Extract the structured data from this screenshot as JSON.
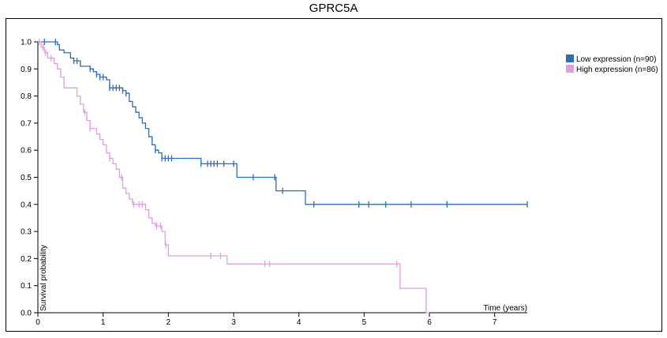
{
  "title": "GPRC5A",
  "chart_data": {
    "type": "line",
    "title": "GPRC5A",
    "xlabel": "Time (years)",
    "ylabel": "Survival probability",
    "xlim": [
      0,
      7.5
    ],
    "ylim": [
      0,
      1.0
    ],
    "x_ticks": [
      0,
      1,
      2,
      3,
      4,
      5,
      6,
      7
    ],
    "y_ticks": [
      0.0,
      0.1,
      0.2,
      0.3,
      0.4,
      0.5,
      0.6,
      0.7,
      0.8,
      0.9,
      1.0
    ],
    "legend_position": "top-right",
    "series": [
      {
        "name": "Low expression (n=90)",
        "color": "#2e6db4",
        "steps": [
          [
            0,
            1.0
          ],
          [
            0.3,
            0.99
          ],
          [
            0.33,
            0.97
          ],
          [
            0.4,
            0.96
          ],
          [
            0.5,
            0.94
          ],
          [
            0.55,
            0.93
          ],
          [
            0.65,
            0.91
          ],
          [
            0.8,
            0.9
          ],
          [
            0.85,
            0.89
          ],
          [
            0.9,
            0.88
          ],
          [
            0.95,
            0.87
          ],
          [
            1.05,
            0.86
          ],
          [
            1.1,
            0.83
          ],
          [
            1.3,
            0.82
          ],
          [
            1.35,
            0.81
          ],
          [
            1.4,
            0.78
          ],
          [
            1.45,
            0.76
          ],
          [
            1.5,
            0.74
          ],
          [
            1.55,
            0.72
          ],
          [
            1.6,
            0.7
          ],
          [
            1.65,
            0.68
          ],
          [
            1.7,
            0.65
          ],
          [
            1.75,
            0.62
          ],
          [
            1.8,
            0.6
          ],
          [
            1.85,
            0.59
          ],
          [
            1.9,
            0.57
          ],
          [
            2.5,
            0.55
          ],
          [
            3.05,
            0.5
          ],
          [
            3.65,
            0.45
          ],
          [
            4.1,
            0.4
          ],
          [
            7.5,
            0.4
          ]
        ],
        "censor_x": [
          0.1,
          0.27,
          0.55,
          0.6,
          0.8,
          0.9,
          0.95,
          1.0,
          1.1,
          1.15,
          1.2,
          1.25,
          1.3,
          1.35,
          1.8,
          1.9,
          1.95,
          2.0,
          2.05,
          2.5,
          2.6,
          2.65,
          2.7,
          2.75,
          2.85,
          3.0,
          3.3,
          3.63,
          3.75,
          4.23,
          4.92,
          5.07,
          5.33,
          5.72,
          6.27,
          7.5
        ]
      },
      {
        "name": "High expression (n=86)",
        "color": "#dda0dd",
        "steps": [
          [
            0,
            1.0
          ],
          [
            0.05,
            0.98
          ],
          [
            0.1,
            0.96
          ],
          [
            0.15,
            0.94
          ],
          [
            0.25,
            0.92
          ],
          [
            0.3,
            0.9
          ],
          [
            0.35,
            0.87
          ],
          [
            0.4,
            0.83
          ],
          [
            0.6,
            0.8
          ],
          [
            0.65,
            0.77
          ],
          [
            0.7,
            0.74
          ],
          [
            0.75,
            0.71
          ],
          [
            0.8,
            0.68
          ],
          [
            0.9,
            0.66
          ],
          [
            0.95,
            0.64
          ],
          [
            1.0,
            0.62
          ],
          [
            1.05,
            0.59
          ],
          [
            1.1,
            0.57
          ],
          [
            1.15,
            0.55
          ],
          [
            1.2,
            0.53
          ],
          [
            1.25,
            0.5
          ],
          [
            1.3,
            0.46
          ],
          [
            1.35,
            0.44
          ],
          [
            1.4,
            0.42
          ],
          [
            1.45,
            0.4
          ],
          [
            1.65,
            0.38
          ],
          [
            1.7,
            0.35
          ],
          [
            1.75,
            0.33
          ],
          [
            1.8,
            0.32
          ],
          [
            1.9,
            0.3
          ],
          [
            1.95,
            0.25
          ],
          [
            2.0,
            0.21
          ],
          [
            2.9,
            0.18
          ],
          [
            5.55,
            0.09
          ],
          [
            5.95,
            0.0
          ],
          [
            6.0,
            0.0
          ]
        ],
        "censor_x": [
          0.02,
          0.08,
          0.12,
          0.2,
          0.72,
          0.8,
          1.1,
          1.28,
          1.47,
          1.55,
          1.6,
          1.82,
          1.88,
          1.96,
          2.65,
          2.8,
          3.48,
          3.55,
          5.5
        ]
      }
    ]
  }
}
